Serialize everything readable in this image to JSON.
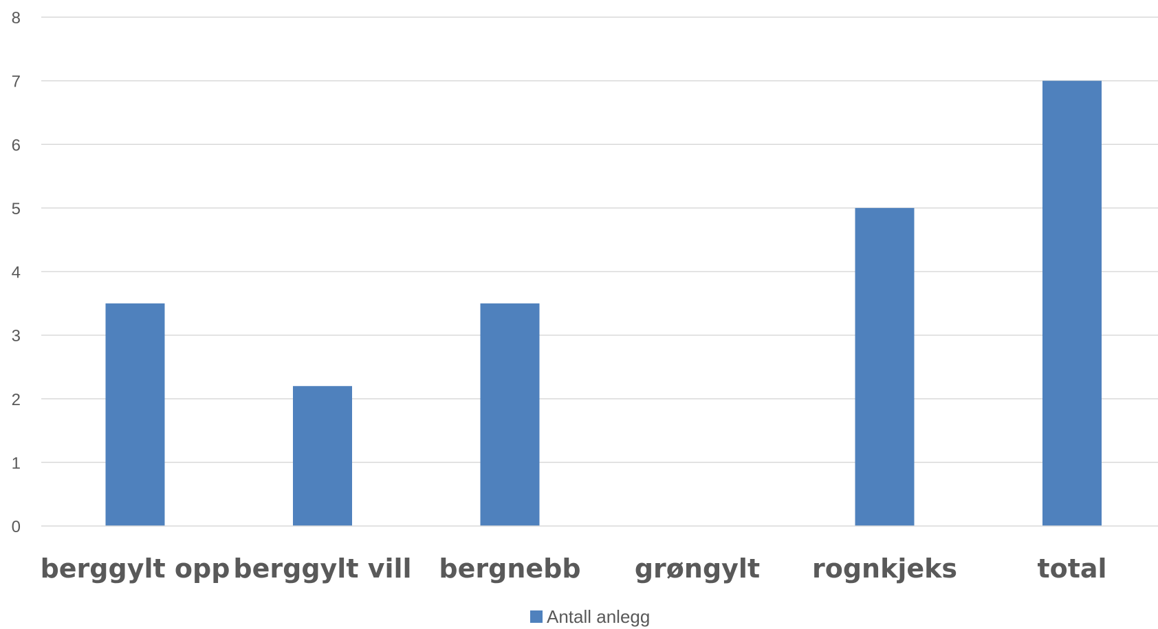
{
  "chart_data": {
    "type": "bar",
    "categories": [
      "berggylt opp",
      "berggylt vill",
      "bergnebb",
      "grøngylt",
      "rognkjeks",
      "total"
    ],
    "series": [
      {
        "name": "Antall anlegg",
        "values": [
          3.5,
          2.2,
          3.5,
          0,
          5,
          7
        ]
      }
    ],
    "ylim": [
      0,
      8
    ],
    "yticks": [
      0,
      1,
      2,
      3,
      4,
      5,
      6,
      7,
      8
    ],
    "ytick_labels": [
      "0",
      "1",
      "2",
      "3",
      "4",
      "5",
      "6",
      "7",
      "8"
    ],
    "grid": true,
    "legend_position": "bottom",
    "colors": {
      "bar": "#4f81bd",
      "grid": "#d9d9d9",
      "text": "#595959"
    }
  }
}
